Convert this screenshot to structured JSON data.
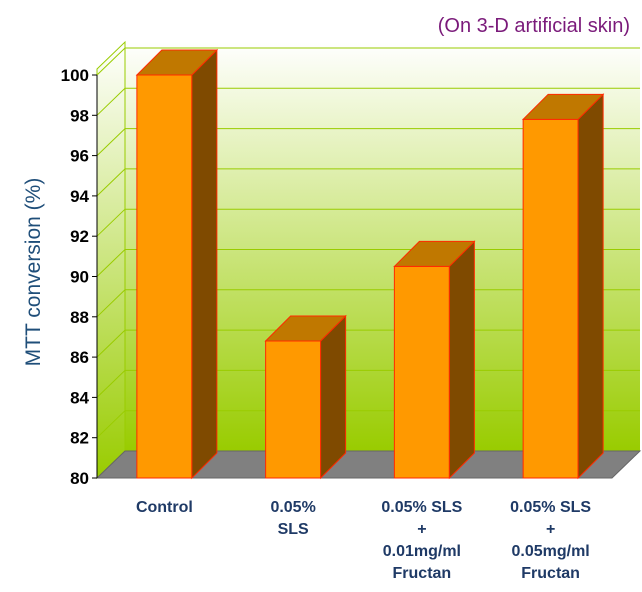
{
  "chart_data": {
    "type": "bar",
    "subtitle": "(On 3-D artificial skin)",
    "ylabel": "MTT conversion (%)",
    "xlabel": "",
    "ylim": [
      80,
      100
    ],
    "yticks": [
      80,
      82,
      84,
      86,
      88,
      90,
      92,
      94,
      96,
      98,
      100
    ],
    "grid": true,
    "categories": [
      [
        "Control"
      ],
      [
        "0.05%",
        "SLS"
      ],
      [
        "0.05% SLS",
        "+",
        "0.01mg/ml",
        "Fructan"
      ],
      [
        "0.05% SLS",
        "+",
        "0.05mg/ml",
        "Fructan"
      ]
    ],
    "values": [
      100,
      86.8,
      90.5,
      97.8
    ],
    "colors": {
      "bar_front": "#ff9900",
      "bar_side": "#7f4a00",
      "bar_top": "#c07800",
      "bar_edge": "#ff2a00",
      "wall_top": "#ffffff",
      "wall_bottom": "#99cc00",
      "grid": "#99cc00",
      "floor": "#808080"
    }
  }
}
